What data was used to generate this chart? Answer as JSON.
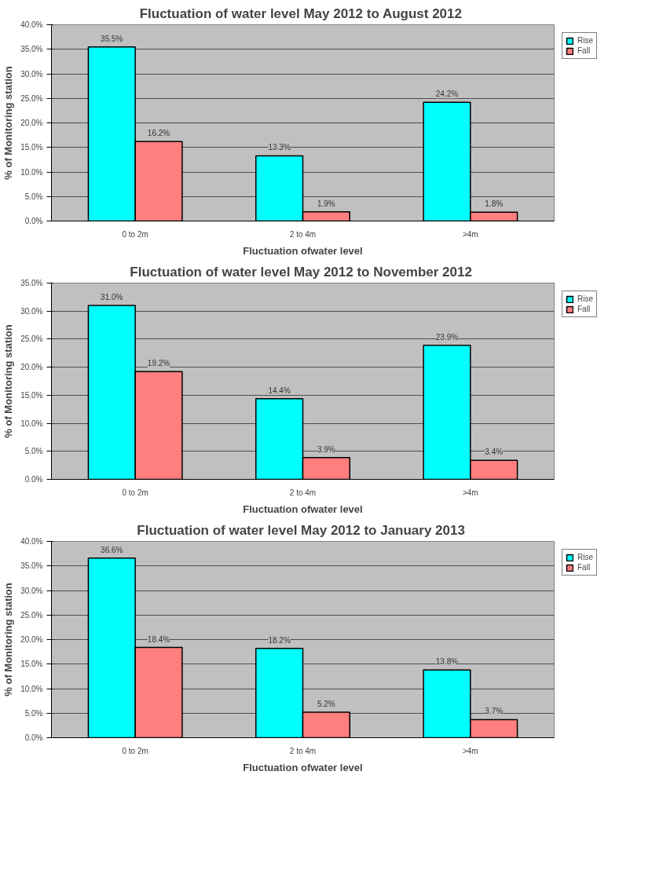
{
  "chart_data": [
    {
      "type": "bar",
      "title": "Fluctuation of water level May 2012 to August  2012",
      "xlabel": "Fluctuation ofwater level",
      "ylabel": "% of Monitoring station",
      "categories": [
        "0 to 2m",
        "2 to 4m",
        ">4m"
      ],
      "series": [
        {
          "name": "Rise",
          "color": "#00ffff",
          "values": [
            35.5,
            13.3,
            24.2
          ],
          "value_labels": [
            "35.5%",
            "13.3%",
            "24.2%"
          ]
        },
        {
          "name": "Fall",
          "color": "#ff7f7f",
          "values": [
            16.2,
            1.9,
            1.8
          ],
          "value_labels": [
            "16.2%",
            "1.9%",
            "1.8%"
          ]
        }
      ],
      "ylim": [
        0,
        40
      ],
      "yticks": [
        {
          "value": 0,
          "label": "0.0%"
        },
        {
          "value": 5,
          "label": "5.0%"
        },
        {
          "value": 10,
          "label": "10.0%"
        },
        {
          "value": 15,
          "label": "15.0%"
        },
        {
          "value": 20,
          "label": "20.0%"
        },
        {
          "value": 25,
          "label": "25.0%"
        },
        {
          "value": 30,
          "label": "30.0%"
        },
        {
          "value": 35,
          "label": "35.0%"
        },
        {
          "value": 40,
          "label": "40.0%"
        }
      ],
      "grid": "y",
      "legend": "right"
    },
    {
      "type": "bar",
      "title": "Fluctuation of water level May 2012 to November  2012",
      "xlabel": "Fluctuation ofwater level",
      "ylabel": "% of Monitoring station",
      "categories": [
        "0 to 2m",
        "2 to 4m",
        ">4m"
      ],
      "series": [
        {
          "name": "Rise",
          "color": "#00ffff",
          "values": [
            31.0,
            14.4,
            23.9
          ],
          "value_labels": [
            "31.0%",
            "14.4%",
            "23.9%"
          ]
        },
        {
          "name": "Fall",
          "color": "#ff7f7f",
          "values": [
            19.2,
            3.9,
            3.4
          ],
          "value_labels": [
            "19.2%",
            "3.9%",
            "3.4%"
          ]
        }
      ],
      "ylim": [
        0,
        35
      ],
      "yticks": [
        {
          "value": 0,
          "label": "0.0%"
        },
        {
          "value": 5,
          "label": "5.0%"
        },
        {
          "value": 10,
          "label": "10.0%"
        },
        {
          "value": 15,
          "label": "15.0%"
        },
        {
          "value": 20,
          "label": "20.0%"
        },
        {
          "value": 25,
          "label": "25.0%"
        },
        {
          "value": 30,
          "label": "30.0%"
        },
        {
          "value": 35,
          "label": "35.0%"
        }
      ],
      "grid": "y",
      "legend": "right"
    },
    {
      "type": "bar",
      "title": "Fluctuation of water level May 2012 to January  2013",
      "xlabel": "Fluctuation ofwater level",
      "ylabel": "% of Monitoring station",
      "categories": [
        "0 to 2m",
        "2 to 4m",
        ">4m"
      ],
      "series": [
        {
          "name": "Rise",
          "color": "#00ffff",
          "values": [
            36.6,
            18.2,
            13.8
          ],
          "value_labels": [
            "36.6%",
            "18.2%",
            "13.8%"
          ]
        },
        {
          "name": "Fall",
          "color": "#ff7f7f",
          "values": [
            18.4,
            5.2,
            3.7
          ],
          "value_labels": [
            "18.4%",
            "5.2%",
            "3.7%"
          ]
        }
      ],
      "ylim": [
        0,
        40
      ],
      "yticks": [
        {
          "value": 0,
          "label": "0.0%"
        },
        {
          "value": 5,
          "label": "5.0%"
        },
        {
          "value": 10,
          "label": "10.0%"
        },
        {
          "value": 15,
          "label": "15.0%"
        },
        {
          "value": 20,
          "label": "20.0%"
        },
        {
          "value": 25,
          "label": "25.0%"
        },
        {
          "value": 30,
          "label": "30.0%"
        },
        {
          "value": 35,
          "label": "35.0%"
        },
        {
          "value": 40,
          "label": "40.0%"
        }
      ],
      "grid": "y",
      "legend": "right"
    }
  ]
}
